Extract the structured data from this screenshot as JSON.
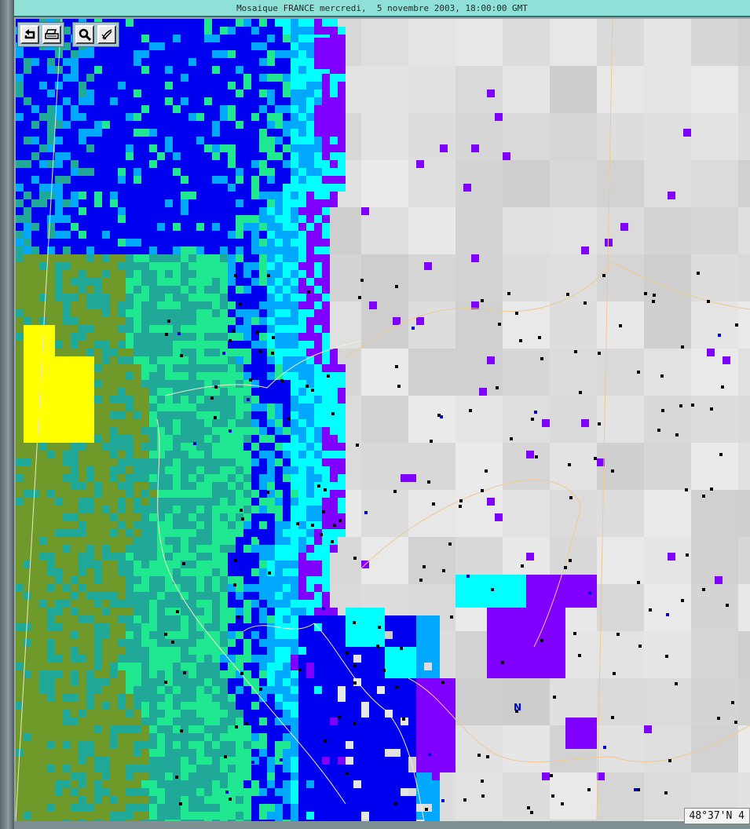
{
  "window": {
    "title": "Mosaique FRANCE mercredi,  5 novembre 2003, 18:00:00 GMT"
  },
  "toolbar": {
    "buttons": [
      {
        "name": "back-icon"
      },
      {
        "name": "print-icon"
      },
      {
        "name": "zoom-icon"
      },
      {
        "name": "pen-icon"
      }
    ]
  },
  "map": {
    "coordinate_readout": "48°37'N 4",
    "station_label": "N",
    "palette": {
      "olive": "#6f9a2a",
      "teal": "#20a898",
      "green": "#20e890",
      "cyan": "#00ffff",
      "skyblue": "#00a8ff",
      "blue": "#0000f0",
      "violet": "#7f00ff",
      "yellow": "#ffff00",
      "background_gray": "#e2e2e2",
      "border_line": "#f0c890"
    }
  }
}
